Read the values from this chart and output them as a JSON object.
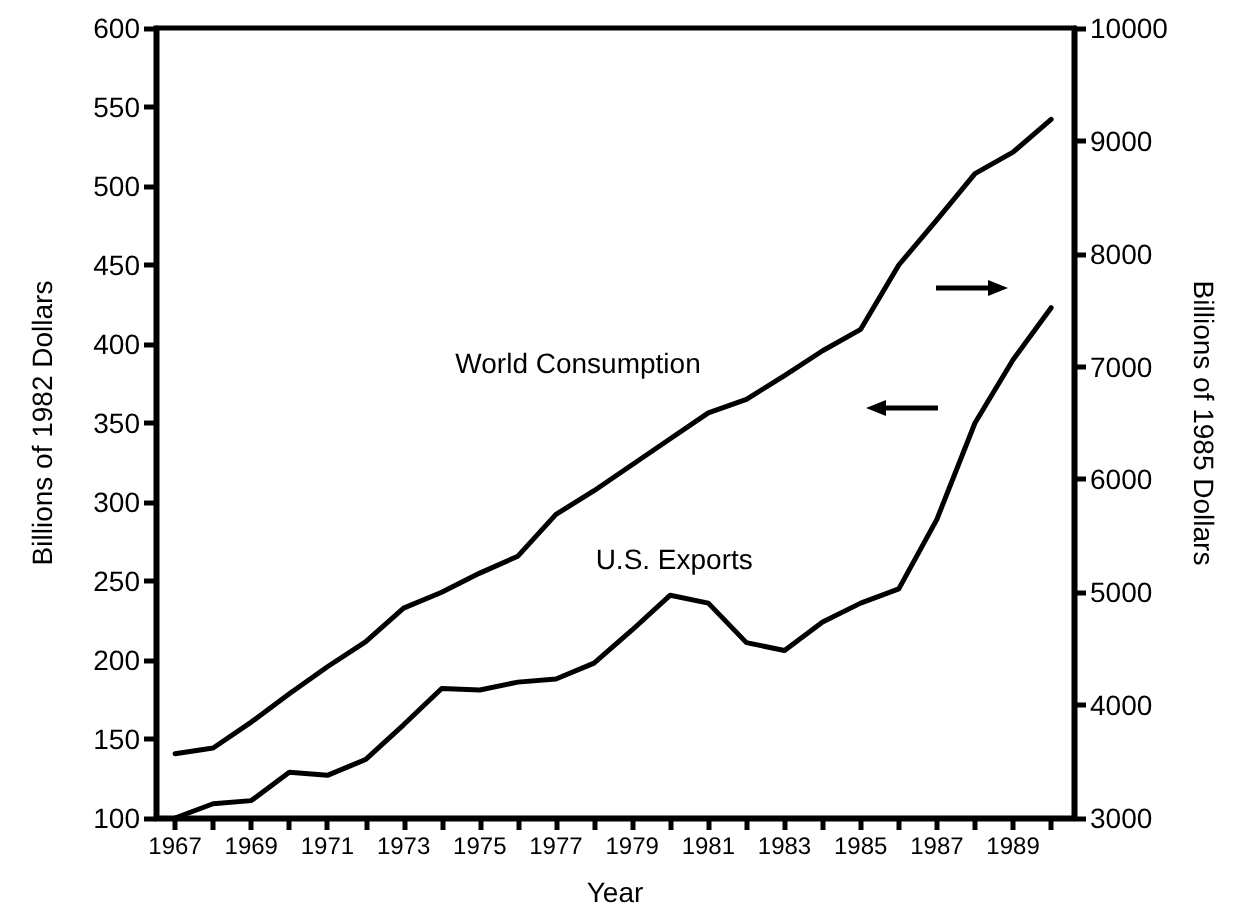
{
  "chart_data": {
    "type": "line",
    "xlabel": "Year",
    "ylabel": "Billions of 1982 Dollars",
    "y2label": "Billions of 1985 Dollars",
    "x": [
      1967,
      1968,
      1969,
      1970,
      1971,
      1972,
      1973,
      1974,
      1975,
      1976,
      1977,
      1978,
      1979,
      1980,
      1981,
      1982,
      1983,
      1984,
      1985,
      1986,
      1987,
      1988,
      1989,
      1990
    ],
    "series": [
      {
        "name": "World Consumption",
        "color": "#000000",
        "axis": "y2",
        "values": [
          3570,
          3620,
          3850,
          4100,
          4340,
          4560,
          4860,
          5000,
          5170,
          5320,
          5690,
          5900,
          6130,
          6360,
          6590,
          6710,
          6920,
          7140,
          7330,
          7900,
          8300,
          8710,
          8900,
          9190
        ]
      },
      {
        "name": "U.S. Exports",
        "color": "#000000",
        "values": [
          100,
          109,
          111,
          129,
          127,
          137,
          159,
          182,
          181,
          186,
          188,
          198,
          219,
          241,
          236,
          211,
          206,
          224,
          236,
          245,
          289,
          350,
          390,
          423
        ]
      }
    ],
    "xlim": [
      1966.5,
      1990.6
    ],
    "xticks": [
      1967,
      {
        "value": 1968,
        "label": null
      },
      1969,
      {
        "value": 1970,
        "label": null
      },
      1971,
      {
        "value": 1972,
        "label": null
      },
      1973,
      {
        "value": 1974,
        "label": null
      },
      1975,
      {
        "value": 1976,
        "label": null
      },
      1977,
      {
        "value": 1978,
        "label": null
      },
      1979,
      {
        "value": 1980,
        "label": null
      },
      1981,
      {
        "value": 1982,
        "label": null
      },
      1983,
      {
        "value": 1984,
        "label": null
      },
      1985,
      {
        "value": 1986,
        "label": null
      },
      1987,
      {
        "value": 1988,
        "label": null
      },
      1989,
      {
        "value": 1990,
        "label": null
      }
    ],
    "ylim": [
      100,
      600
    ],
    "yticks": [
      100,
      150,
      200,
      250,
      300,
      350,
      400,
      450,
      500,
      550,
      600
    ],
    "y2lim": [
      3000,
      10000
    ],
    "y2ticks": [
      3000,
      4000,
      5000,
      6000,
      7000,
      8000,
      9000,
      10000
    ],
    "grid": false,
    "legend": false,
    "marker": "none",
    "line_style": "solid"
  }
}
